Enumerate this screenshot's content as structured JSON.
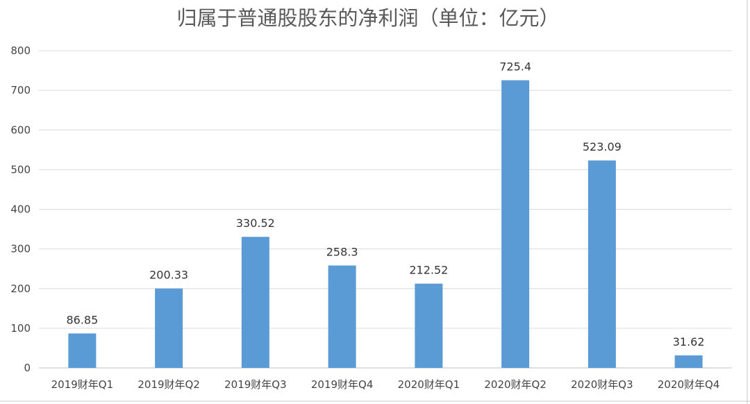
{
  "chart_data": {
    "type": "bar",
    "title": "归属于普通股股东的净利润（单位：亿元）",
    "categories": [
      "2019财年Q1",
      "2019财年Q2",
      "2019财年Q3",
      "2019财年Q4",
      "2020财年Q1",
      "2020财年Q2",
      "2020财年Q3",
      "2020财年Q4"
    ],
    "values": [
      86.85,
      200.33,
      330.52,
      258.3,
      212.52,
      725.4,
      523.09,
      31.62
    ],
    "data_labels": [
      "86.85",
      "200.33",
      "330.52",
      "258.3",
      "212.52",
      "725.4",
      "523.09",
      "31.62"
    ],
    "ylim": [
      0,
      800
    ],
    "yticks": [
      0,
      100,
      200,
      300,
      400,
      500,
      600,
      700,
      800
    ],
    "grid": true,
    "bar_color": "#5b9bd5"
  }
}
